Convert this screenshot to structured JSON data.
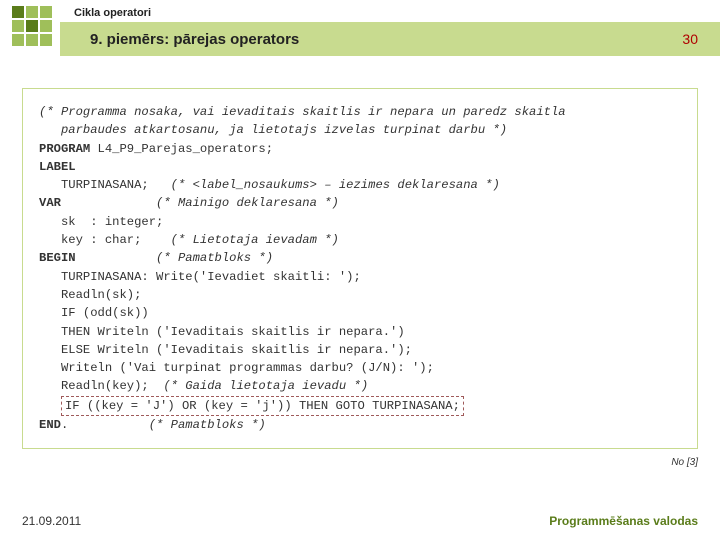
{
  "header": {
    "topic": "Cikla operatori",
    "title": "9. piemērs: pārejas operators",
    "page_number": "30"
  },
  "code": {
    "c1": "(* Programma nosaka, vai ievaditais skaitlis ir nepara un paredz skaitla",
    "c2": "   parbaudes atkartosanu, ja lietotajs izvelas turpinat darbu *)",
    "kw_program": "PROGRAM",
    "prog_name": " L4_P9_Parejas_operators;",
    "kw_label": "LABEL",
    "label_line": "   TURPINASANA;   ",
    "label_comment": "(* <label_nosaukums> – iezimes deklaresana *)",
    "kw_var": "VAR",
    "var_comment": "(* Mainigo deklaresana *)",
    "var1": "   sk  : integer;",
    "var2": "   key : char;    ",
    "var2_comment": "(* Lietotaja ievadam *)",
    "kw_begin": "BEGIN",
    "begin_comment": "(* Pamatbloks *)",
    "l1": "   TURPINASANA: Write('Ievadiet skaitli: ');",
    "l2": "   Readln(sk);",
    "l3": "   IF (odd(sk))",
    "l4": "   THEN Writeln ('Ievaditais skaitlis ir nepara.')",
    "l5": "   ELSE Writeln ('Ievaditais skaitlis ir nepara.');",
    "l6": "   Writeln ('Vai turpinat programmas darbu? (J/N): ');",
    "l7": "   Readln(key);  ",
    "l7_comment": "(* Gaida lietotaja ievadu *)",
    "goto": "IF ((key = 'J') OR (key = 'j')) THEN GOTO TURPINASANA;",
    "kw_end": "END",
    "end_dot": ".           ",
    "end_comment": "(* Pamatbloks *)"
  },
  "reference": "No [3]",
  "footer": {
    "date": "21.09.2011",
    "course": "Programmēšanas valodas"
  }
}
